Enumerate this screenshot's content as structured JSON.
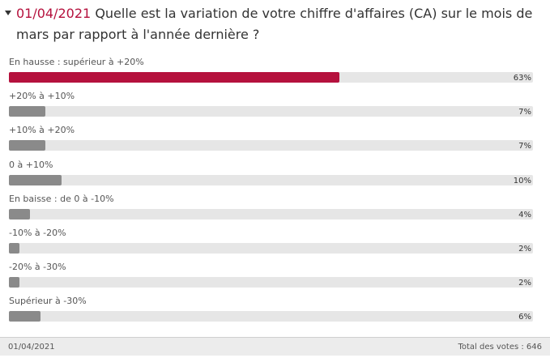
{
  "poll": {
    "date": "01/04/2021",
    "question_part1": "Quelle est la variation de votre chiffre d'affaires (CA) sur le mois de",
    "question_part2": "mars par rapport à l'année dernière ?",
    "options": [
      {
        "label": "En hausse : supérieur à +20%",
        "percent": 63,
        "percent_text": "63%",
        "highlight": true
      },
      {
        "label": "+20% à +10%",
        "percent": 7,
        "percent_text": "7%",
        "highlight": false
      },
      {
        "label": "+10% à +20%",
        "percent": 7,
        "percent_text": "7%",
        "highlight": false
      },
      {
        "label": "0 à +10%",
        "percent": 10,
        "percent_text": "10%",
        "highlight": false
      },
      {
        "label": "En baisse : de 0 à -10%",
        "percent": 4,
        "percent_text": "4%",
        "highlight": false
      },
      {
        "label": "-10% à -20%",
        "percent": 2,
        "percent_text": "2%",
        "highlight": false
      },
      {
        "label": "-20% à -30%",
        "percent": 2,
        "percent_text": "2%",
        "highlight": false
      },
      {
        "label": "Supérieur à -30%",
        "percent": 6,
        "percent_text": "6%",
        "highlight": false
      }
    ]
  },
  "footer": {
    "date": "01/04/2021",
    "votes_text": "Total des votes : 646"
  },
  "colors": {
    "accent": "#b5113d",
    "bar": "#8a8a8a",
    "track": "#e6e6e6"
  }
}
